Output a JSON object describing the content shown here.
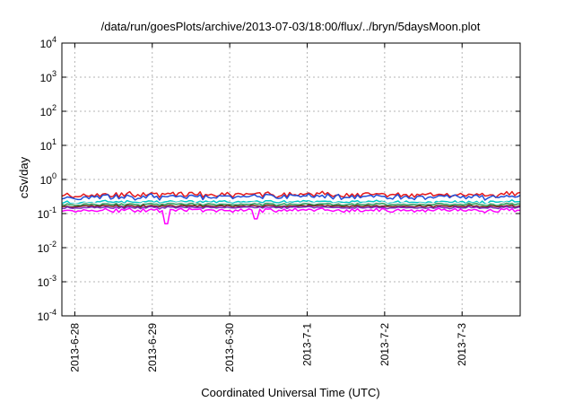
{
  "chart_data": {
    "type": "line",
    "title": "/data/run/goesPlots/archive/2013-07-03/18:00/flux/../bryn/5daysMoon.plot",
    "xlabel": "Coordinated Universal Time (UTC)",
    "ylabel": "cSv/day",
    "yscale": "log",
    "ylim": [
      0.0001,
      10000
    ],
    "y_tick_labels": [
      {
        "base": "10",
        "exp": "-4"
      },
      {
        "base": "10",
        "exp": "-3"
      },
      {
        "base": "10",
        "exp": "-2"
      },
      {
        "base": "10",
        "exp": "-1"
      },
      {
        "base": "10",
        "exp": "0"
      },
      {
        "base": "10",
        "exp": "1"
      },
      {
        "base": "10",
        "exp": "2"
      },
      {
        "base": "10",
        "exp": "3"
      },
      {
        "base": "10",
        "exp": "4"
      }
    ],
    "xlim": [
      "2013-06-27 20:00",
      "2013-07-03 18:00"
    ],
    "x_ticks": [
      "2013-6-28",
      "2013-6-29",
      "2013-6-30",
      "2013-7-1",
      "2013-7-2",
      "2013-7-3"
    ],
    "grid": true,
    "legend": false,
    "series": [
      {
        "color": "#e41a1c",
        "base": 0.36,
        "spread": 0.3
      },
      {
        "color": "#1f4fd8",
        "base": 0.31,
        "spread": 0.3
      },
      {
        "color": "#00c8c8",
        "base": 0.22,
        "spread": 0.18
      },
      {
        "color": "#eeeeee",
        "base": 0.2,
        "spread": 0.14
      },
      {
        "color": "#2e9e5a",
        "base": 0.185,
        "spread": 0.12
      },
      {
        "color": "#7a1c1c",
        "base": 0.165,
        "spread": 0.12
      },
      {
        "color": "#7b2fbf",
        "base": 0.15,
        "spread": 0.12
      },
      {
        "color": "#ff00ff",
        "base": 0.125,
        "spread": 0.22
      }
    ],
    "dips": [
      {
        "series": 7,
        "date": "2013-06-29 04:00",
        "value": 0.05
      },
      {
        "series": 7,
        "date": "2013-06-30 08:00",
        "value": 0.07
      }
    ]
  }
}
